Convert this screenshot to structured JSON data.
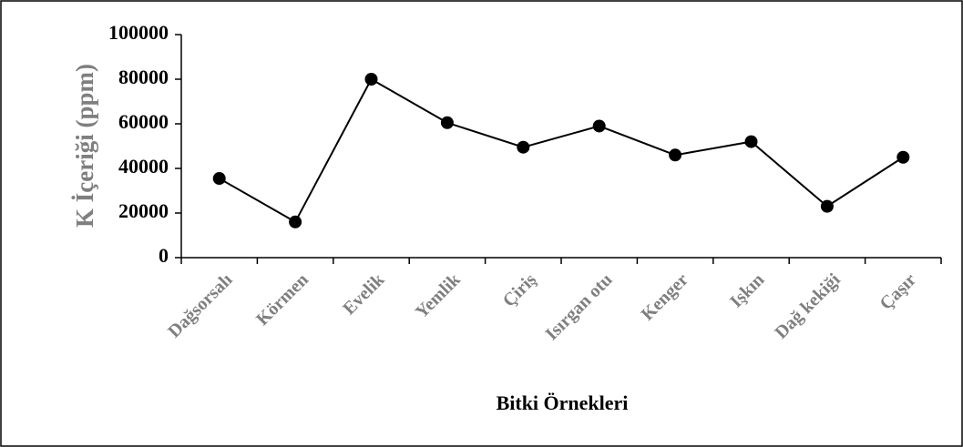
{
  "chart_data": {
    "type": "line",
    "x_label": "Bitki Örnekleri",
    "y_label": "K İçeriği (ppm)",
    "categories": [
      "Dağsorsalı",
      "Körmen",
      "Evelik",
      "Yemlik",
      "Çiriş",
      "Isırgan otu",
      "Kenger",
      "Işkın",
      "Dağ kekiği",
      "Çaşır"
    ],
    "series": [
      {
        "name": "K",
        "color": "#000000",
        "values": [
          35500,
          16000,
          80000,
          60500,
          49500,
          59000,
          46000,
          52000,
          23000,
          45000
        ]
      }
    ],
    "ylim": [
      0,
      100000
    ],
    "yticks": [
      0,
      20000,
      40000,
      60000,
      80000,
      100000
    ],
    "grid": false
  }
}
